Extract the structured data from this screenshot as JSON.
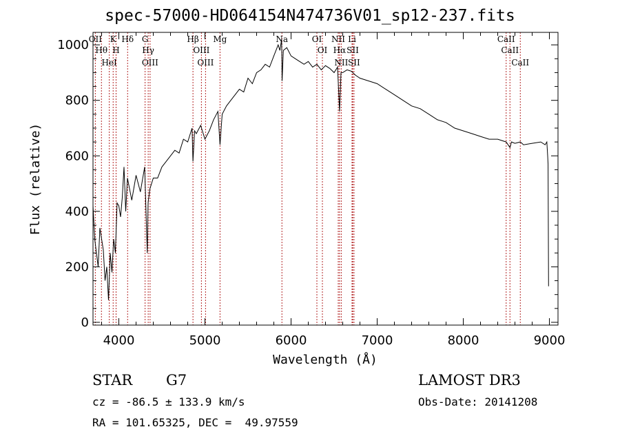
{
  "chart_data": {
    "type": "line",
    "title": "spec-57000-HD064154N474736V01_sp12-237.fits",
    "xlabel": "Wavelength (Å)",
    "ylabel": "Flux (relative)",
    "xlim": [
      3700,
      9100
    ],
    "ylim": [
      -10,
      1045
    ],
    "x_ticks": [
      4000,
      5000,
      6000,
      7000,
      8000,
      9000
    ],
    "y_ticks": [
      0,
      200,
      400,
      600,
      800,
      1000
    ],
    "series": [
      {
        "name": "flux",
        "x": [
          3700,
          3720,
          3740,
          3760,
          3780,
          3800,
          3820,
          3840,
          3860,
          3880,
          3900,
          3920,
          3940,
          3960,
          3980,
          4000,
          4020,
          4040,
          4060,
          4080,
          4100,
          4150,
          4200,
          4250,
          4300,
          4330,
          4340,
          4360,
          4400,
          4450,
          4500,
          4550,
          4600,
          4650,
          4700,
          4750,
          4800,
          4850,
          4861,
          4880,
          4900,
          4950,
          5000,
          5050,
          5100,
          5150,
          5175,
          5200,
          5250,
          5300,
          5350,
          5400,
          5450,
          5500,
          5550,
          5600,
          5650,
          5700,
          5750,
          5800,
          5850,
          5870,
          5890,
          5896,
          5910,
          5950,
          6000,
          6050,
          6100,
          6150,
          6200,
          6250,
          6300,
          6350,
          6400,
          6450,
          6500,
          6540,
          6563,
          6580,
          6600,
          6650,
          6700,
          6750,
          6800,
          6900,
          7000,
          7100,
          7200,
          7300,
          7400,
          7500,
          7600,
          7700,
          7800,
          7900,
          8000,
          8100,
          8200,
          8300,
          8400,
          8498,
          8520,
          8542,
          8560,
          8600,
          8662,
          8700,
          8800,
          8900,
          8950,
          8970,
          8980,
          8985,
          8990
        ],
        "values": [
          420,
          300,
          250,
          200,
          340,
          300,
          260,
          150,
          200,
          80,
          250,
          180,
          300,
          250,
          430,
          420,
          380,
          450,
          560,
          400,
          520,
          440,
          530,
          470,
          560,
          250,
          430,
          480,
          520,
          520,
          560,
          580,
          600,
          620,
          610,
          660,
          650,
          700,
          580,
          690,
          680,
          710,
          660,
          690,
          730,
          760,
          640,
          750,
          780,
          800,
          820,
          840,
          830,
          880,
          860,
          900,
          910,
          930,
          920,
          960,
          1000,
          980,
          1020,
          870,
          980,
          990,
          960,
          950,
          940,
          930,
          940,
          920,
          930,
          910,
          925,
          915,
          900,
          920,
          760,
          900,
          900,
          910,
          905,
          890,
          880,
          870,
          860,
          840,
          820,
          800,
          780,
          770,
          750,
          730,
          720,
          700,
          690,
          680,
          670,
          660,
          660,
          650,
          640,
          630,
          650,
          645,
          650,
          640,
          645,
          650,
          640,
          650,
          600,
          570,
          130
        ]
      }
    ],
    "lines": [
      {
        "label": "OII",
        "wave": 3727
      },
      {
        "label": "Hθ",
        "wave": 3798
      },
      {
        "label": "HeI",
        "wave": 3889
      },
      {
        "label": "K",
        "wave": 3934
      },
      {
        "label": "H",
        "wave": 3968
      },
      {
        "label": "Hδ",
        "wave": 4102
      },
      {
        "label": "G",
        "wave": 4305
      },
      {
        "label": "Hγ",
        "wave": 4341
      },
      {
        "label": "OIII",
        "wave": 4363
      },
      {
        "label": "Hβ",
        "wave": 4861
      },
      {
        "label": "OIII",
        "wave": 4959
      },
      {
        "label": "OIII",
        "wave": 5007
      },
      {
        "label": "Mg",
        "wave": 5175
      },
      {
        "label": "Na",
        "wave": 5894
      },
      {
        "label": "OI",
        "wave": 6300
      },
      {
        "label": "OI",
        "wave": 6364
      },
      {
        "label": "NII",
        "wave": 6548
      },
      {
        "label": "Hα",
        "wave": 6563
      },
      {
        "label": "NII",
        "wave": 6583
      },
      {
        "label": "Li",
        "wave": 6708
      },
      {
        "label": "SII",
        "wave": 6716
      },
      {
        "label": "SII",
        "wave": 6731
      },
      {
        "label": "CaII",
        "wave": 8498
      },
      {
        "label": "CaII",
        "wave": 8542
      },
      {
        "label": "CaII",
        "wave": 8662
      }
    ]
  },
  "info": {
    "class_label": "STAR",
    "subclass": "G7",
    "survey": "LAMOST DR3",
    "cz": "cz = -86.5 ± 133.9 km/s",
    "obs_date": "Obs-Date: 20141208",
    "coords": "RA = 101.65325, DEC =  49.97559"
  },
  "colors": {
    "line": "#000000",
    "marker": "#b22222"
  }
}
